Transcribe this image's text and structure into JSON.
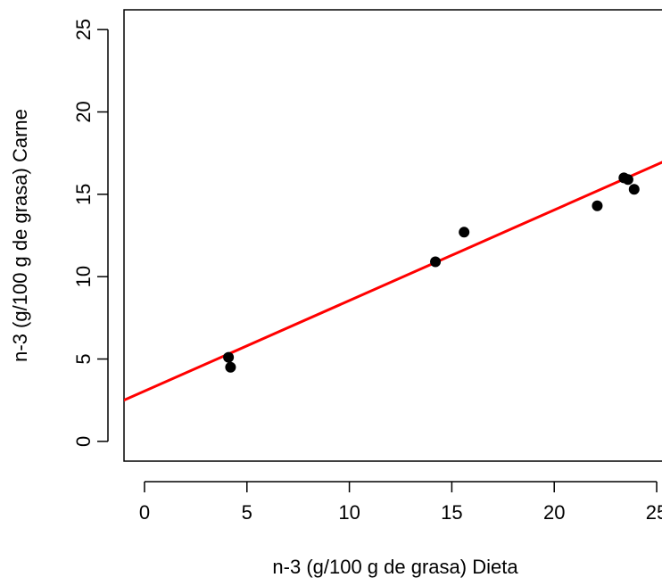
{
  "chart_data": {
    "type": "scatter",
    "xlabel": "n-3 (g/100 g de grasa) Dieta",
    "ylabel": "n-3 (g/100 g de grasa) Carne",
    "xlim": [
      -1,
      26
    ],
    "ylim": [
      -1.2,
      26.2
    ],
    "xticks": [
      0,
      5,
      10,
      15,
      20,
      25
    ],
    "yticks": [
      0,
      5,
      10,
      15,
      20,
      25
    ],
    "grid": false,
    "legend": "none",
    "series": [
      {
        "color": "#000000",
        "points": [
          {
            "x": 4.1,
            "y": 5.1
          },
          {
            "x": 4.2,
            "y": 4.5
          },
          {
            "x": 14.2,
            "y": 10.9
          },
          {
            "x": 15.6,
            "y": 12.7
          },
          {
            "x": 22.1,
            "y": 14.3
          },
          {
            "x": 23.4,
            "y": 16.0
          },
          {
            "x": 23.6,
            "y": 15.9
          },
          {
            "x": 23.9,
            "y": 15.3
          }
        ]
      }
    ],
    "fit_line": {
      "color": "#ff0000",
      "intercept": 3.05,
      "slope": 0.55
    }
  }
}
